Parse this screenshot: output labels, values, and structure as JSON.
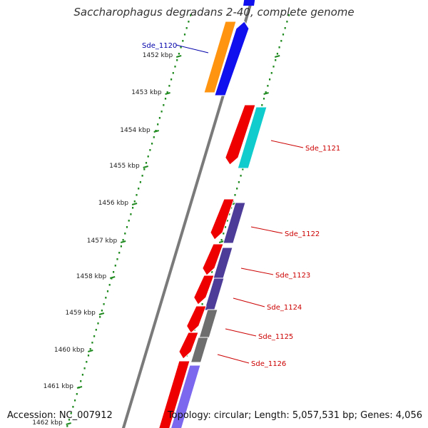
{
  "title": "Saccharophagus degradans 2-40, complete genome",
  "accession": "Accession: NC_007912",
  "topology": "Topology: circular; Length: 5,057,531 bp; Genes: 4,056",
  "colors": {
    "backbone": "#7a7a7a",
    "tick": "#1f8a1f",
    "ruler_text": "#222222",
    "label_red": "#cc0000",
    "label_blue": "#0000aa"
  },
  "ruler_labels": [
    {
      "text": "1452 kbp"
    },
    {
      "text": "1453 kbp"
    },
    {
      "text": "1454 kbp"
    },
    {
      "text": "1455 kbp"
    },
    {
      "text": "1456 kbp"
    },
    {
      "text": "1457 kbp"
    },
    {
      "text": "1458 kbp"
    },
    {
      "text": "1459 kbp"
    },
    {
      "text": "1460 kbp"
    },
    {
      "text": "1461 kbp"
    },
    {
      "text": "1462 kbp"
    }
  ],
  "gene_labels": [
    {
      "text": "Sde_1120",
      "color": "#0000aa"
    },
    {
      "text": "Sde_1121",
      "color": "#cc0000"
    },
    {
      "text": "Sde_1122",
      "color": "#cc0000"
    },
    {
      "text": "Sde_1123",
      "color": "#cc0000"
    },
    {
      "text": "Sde_1124",
      "color": "#cc0000"
    },
    {
      "text": "Sde_1125",
      "color": "#cc0000"
    },
    {
      "text": "Sde_1126",
      "color": "#cc0000"
    }
  ],
  "features": [
    {
      "name": "Sde_1120-cds",
      "color": "#1010ee",
      "strand": "forward"
    },
    {
      "name": "Sde_1120-category",
      "color": "#ff9411",
      "strand": "forward"
    },
    {
      "name": "Sde_1121-cds",
      "color": "#ee0000",
      "strand": "reverse"
    },
    {
      "name": "Sde_1121-category",
      "color": "#11cccc",
      "strand": "none"
    },
    {
      "name": "Sde_1122-cds",
      "color": "#ee0000",
      "strand": "reverse"
    },
    {
      "name": "Sde_1122-category",
      "color": "#4d3d99",
      "strand": "none"
    },
    {
      "name": "Sde_1123-cds",
      "color": "#ee0000",
      "strand": "reverse"
    },
    {
      "name": "Sde_1123-category",
      "color": "#4d3d99",
      "strand": "none"
    },
    {
      "name": "Sde_1124-cds",
      "color": "#ee0000",
      "strand": "reverse"
    },
    {
      "name": "Sde_1124-category",
      "color": "#4d3d99",
      "strand": "none"
    },
    {
      "name": "Sde_1125-cds",
      "color": "#ee0000",
      "strand": "reverse"
    },
    {
      "name": "Sde_1125-category",
      "color": "#6e6e6e",
      "strand": "none"
    },
    {
      "name": "Sde_1126-cds",
      "color": "#ee0000",
      "strand": "reverse"
    },
    {
      "name": "Sde_1126-category",
      "color": "#6e6e6e",
      "strand": "none"
    },
    {
      "name": "next-cds",
      "color": "#ee0000",
      "strand": "reverse"
    },
    {
      "name": "next-category",
      "color": "#7b68ee",
      "strand": "none"
    }
  ]
}
